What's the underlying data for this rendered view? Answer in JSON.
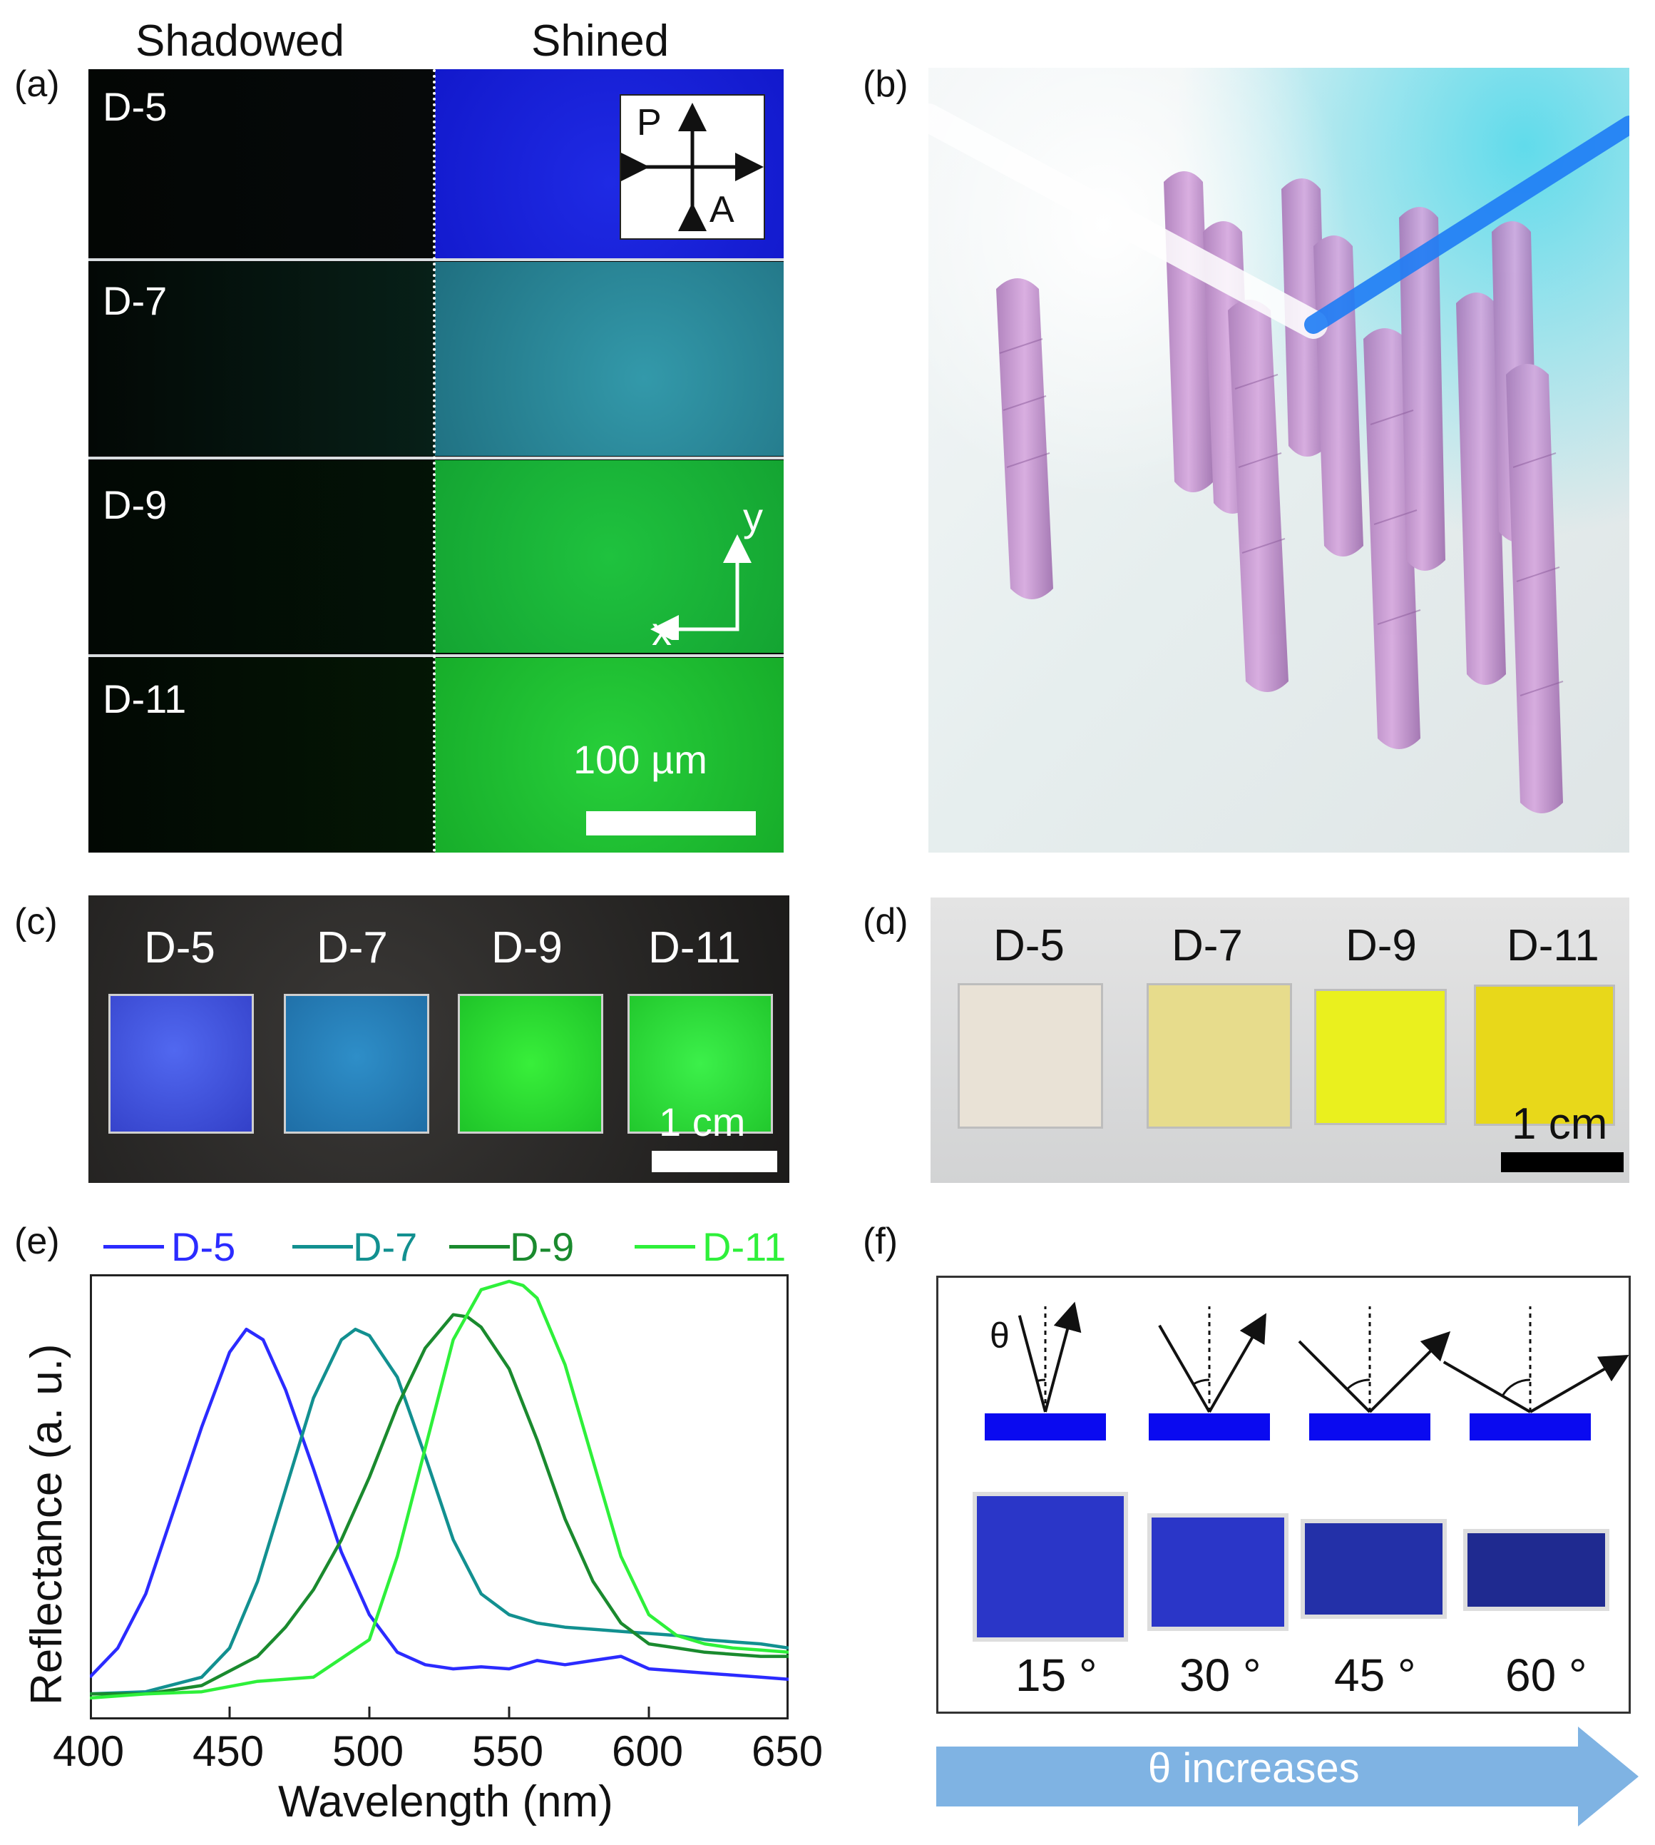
{
  "panel_a": {
    "label": "(a)",
    "col_left": "Shadowed",
    "col_right": "Shined",
    "rows": [
      {
        "name": "D-5",
        "color": "#1a22dd"
      },
      {
        "name": "D-7",
        "color": "#2a8aa0"
      },
      {
        "name": "D-9",
        "color": "#17b43c"
      },
      {
        "name": "D-11",
        "color": "#1fc23a"
      }
    ],
    "polarizer_p": "P",
    "polarizer_a": "A",
    "axis_y": "y",
    "axis_x": "x",
    "scalebar": "100 µm"
  },
  "panel_b": {
    "label": "(b)"
  },
  "panel_c": {
    "label": "(c)",
    "samples": [
      "D-5",
      "D-7",
      "D-9",
      "D-11"
    ],
    "scalebar": "1 cm"
  },
  "panel_d": {
    "label": "(d)",
    "samples": [
      "D-5",
      "D-7",
      "D-9",
      "D-11"
    ],
    "scalebar": "1 cm"
  },
  "panel_e": {
    "label": "(e)"
  },
  "panel_f": {
    "label": "(f)",
    "theta": "θ",
    "angles": [
      "15 °",
      "30 °",
      "45 °",
      "60 °"
    ],
    "angle_values": [
      15,
      30,
      45,
      60
    ],
    "arrow_label": "θ increases"
  },
  "chart_data": {
    "type": "line",
    "title": "",
    "xlabel": "Wavelength (nm)",
    "ylabel": "Reflectance (a. u.)",
    "xlim": [
      400,
      650
    ],
    "ylim": [
      0,
      1
    ],
    "xticks": [
      "400",
      "450",
      "500",
      "550",
      "600",
      "650"
    ],
    "legend_position": "top",
    "series": [
      {
        "name": "D-5",
        "color": "#2b2bff",
        "x": [
          400,
          410,
          420,
          430,
          440,
          450,
          456,
          462,
          470,
          480,
          490,
          500,
          510,
          520,
          530,
          540,
          550,
          560,
          570,
          580,
          590,
          600,
          610,
          620,
          630,
          640,
          650
        ],
        "y": [
          0.05,
          0.12,
          0.25,
          0.45,
          0.65,
          0.83,
          0.885,
          0.86,
          0.74,
          0.55,
          0.35,
          0.2,
          0.11,
          0.08,
          0.07,
          0.075,
          0.07,
          0.09,
          0.08,
          0.09,
          0.1,
          0.07,
          0.065,
          0.06,
          0.055,
          0.05,
          0.045
        ]
      },
      {
        "name": "D-7",
        "color": "#129090",
        "x": [
          400,
          420,
          440,
          450,
          460,
          470,
          480,
          490,
          495,
          500,
          510,
          520,
          530,
          540,
          550,
          560,
          570,
          580,
          590,
          600,
          610,
          620,
          630,
          640,
          650
        ],
        "y": [
          0.01,
          0.015,
          0.05,
          0.12,
          0.28,
          0.5,
          0.72,
          0.86,
          0.885,
          0.87,
          0.77,
          0.58,
          0.38,
          0.25,
          0.2,
          0.18,
          0.17,
          0.165,
          0.16,
          0.155,
          0.15,
          0.14,
          0.135,
          0.13,
          0.12
        ]
      },
      {
        "name": "D-9",
        "color": "#1a8a2e",
        "x": [
          400,
          420,
          440,
          460,
          470,
          480,
          490,
          500,
          510,
          520,
          530,
          535,
          540,
          550,
          560,
          570,
          580,
          590,
          600,
          610,
          620,
          630,
          640,
          650
        ],
        "y": [
          0.01,
          0.01,
          0.03,
          0.1,
          0.17,
          0.26,
          0.38,
          0.53,
          0.7,
          0.84,
          0.92,
          0.915,
          0.89,
          0.79,
          0.62,
          0.43,
          0.28,
          0.18,
          0.13,
          0.12,
          0.11,
          0.105,
          0.1,
          0.1
        ]
      },
      {
        "name": "D-11",
        "color": "#2ef03a",
        "x": [
          400,
          420,
          440,
          460,
          480,
          500,
          510,
          520,
          530,
          540,
          550,
          555,
          560,
          570,
          580,
          590,
          600,
          610,
          620,
          630,
          640,
          650
        ],
        "y": [
          0.0,
          0.01,
          0.015,
          0.04,
          0.05,
          0.14,
          0.34,
          0.6,
          0.86,
          0.98,
          1.0,
          0.99,
          0.96,
          0.8,
          0.57,
          0.34,
          0.2,
          0.15,
          0.13,
          0.12,
          0.115,
          0.11
        ]
      }
    ]
  }
}
